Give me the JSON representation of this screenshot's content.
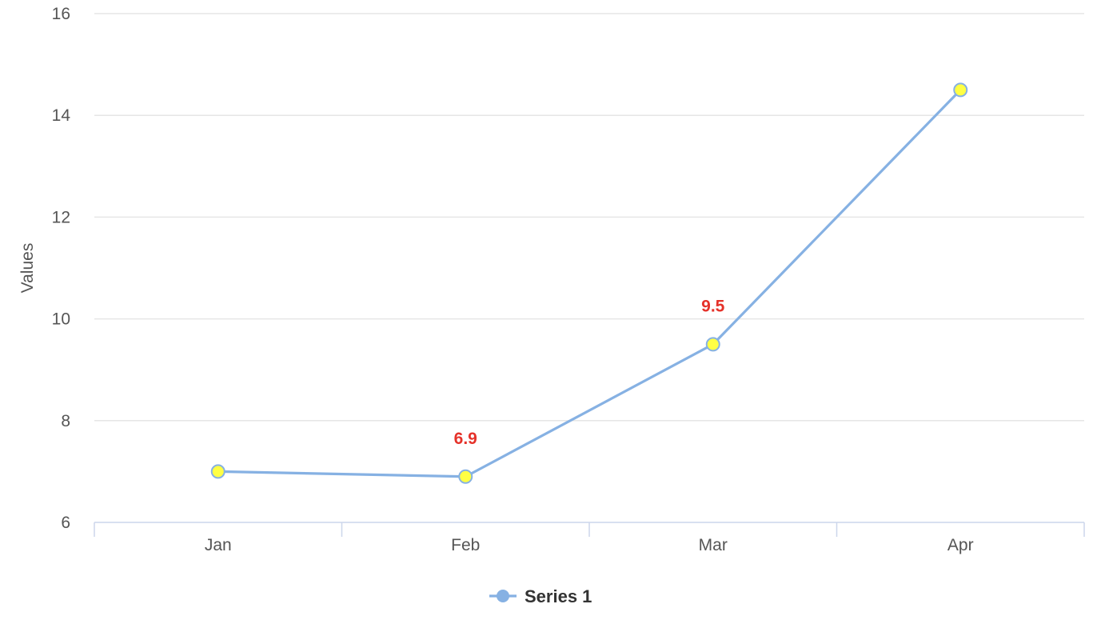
{
  "chart_data": {
    "type": "line",
    "categories": [
      "Jan",
      "Feb",
      "Mar",
      "Apr"
    ],
    "series": [
      {
        "name": "Series 1",
        "values": [
          7.0,
          6.9,
          9.5,
          14.5
        ]
      }
    ],
    "data_labels": [
      {
        "index": 1,
        "text": "6.9"
      },
      {
        "index": 2,
        "text": "9.5"
      }
    ],
    "title": "",
    "xlabel": "",
    "ylabel": "Values",
    "ylim": [
      6,
      16
    ],
    "yticks": [
      "6",
      "8",
      "10",
      "12",
      "14",
      "16"
    ],
    "grid": true,
    "legend": "bottom-center",
    "colors": {
      "line": "#86b1e3",
      "marker_fill": "#ffff44",
      "marker_stroke": "#86b1e3",
      "data_label": "#e5322a"
    }
  }
}
